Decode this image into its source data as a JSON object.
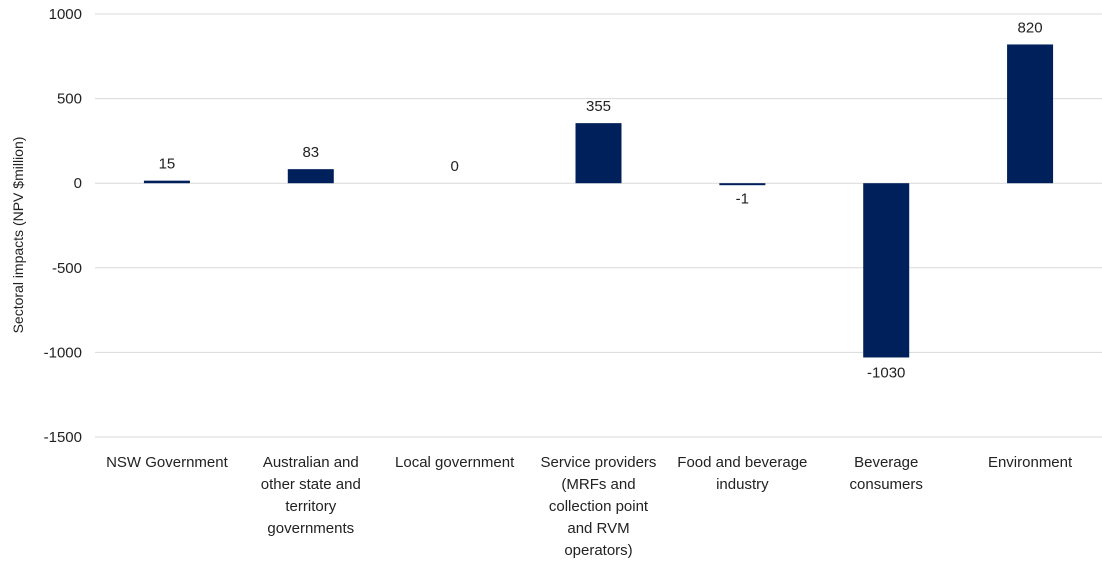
{
  "chart_data": {
    "type": "bar",
    "title": "",
    "xlabel": "",
    "ylabel": "Sectoral impacts (NPV $million)",
    "ylim": [
      -1500,
      1000
    ],
    "yticks": [
      1000,
      500,
      0,
      -500,
      -1000,
      -1500
    ],
    "grid": true,
    "legend": "none",
    "bar_color": "#00205B",
    "categories": [
      [
        "NSW Government"
      ],
      [
        "Australian and",
        "other state and",
        "territory",
        "governments"
      ],
      [
        "Local government"
      ],
      [
        "Service providers",
        "(MRFs and",
        "collection point",
        "and RVM",
        "operators)"
      ],
      [
        "Food and beverage",
        "industry"
      ],
      [
        "Beverage",
        "consumers"
      ],
      [
        "Environment"
      ]
    ],
    "values": [
      15,
      83,
      0,
      355,
      -1,
      -1030,
      820
    ],
    "data_labels": [
      "15",
      "83",
      "0",
      "355",
      "-1",
      "-1030",
      "820"
    ]
  }
}
